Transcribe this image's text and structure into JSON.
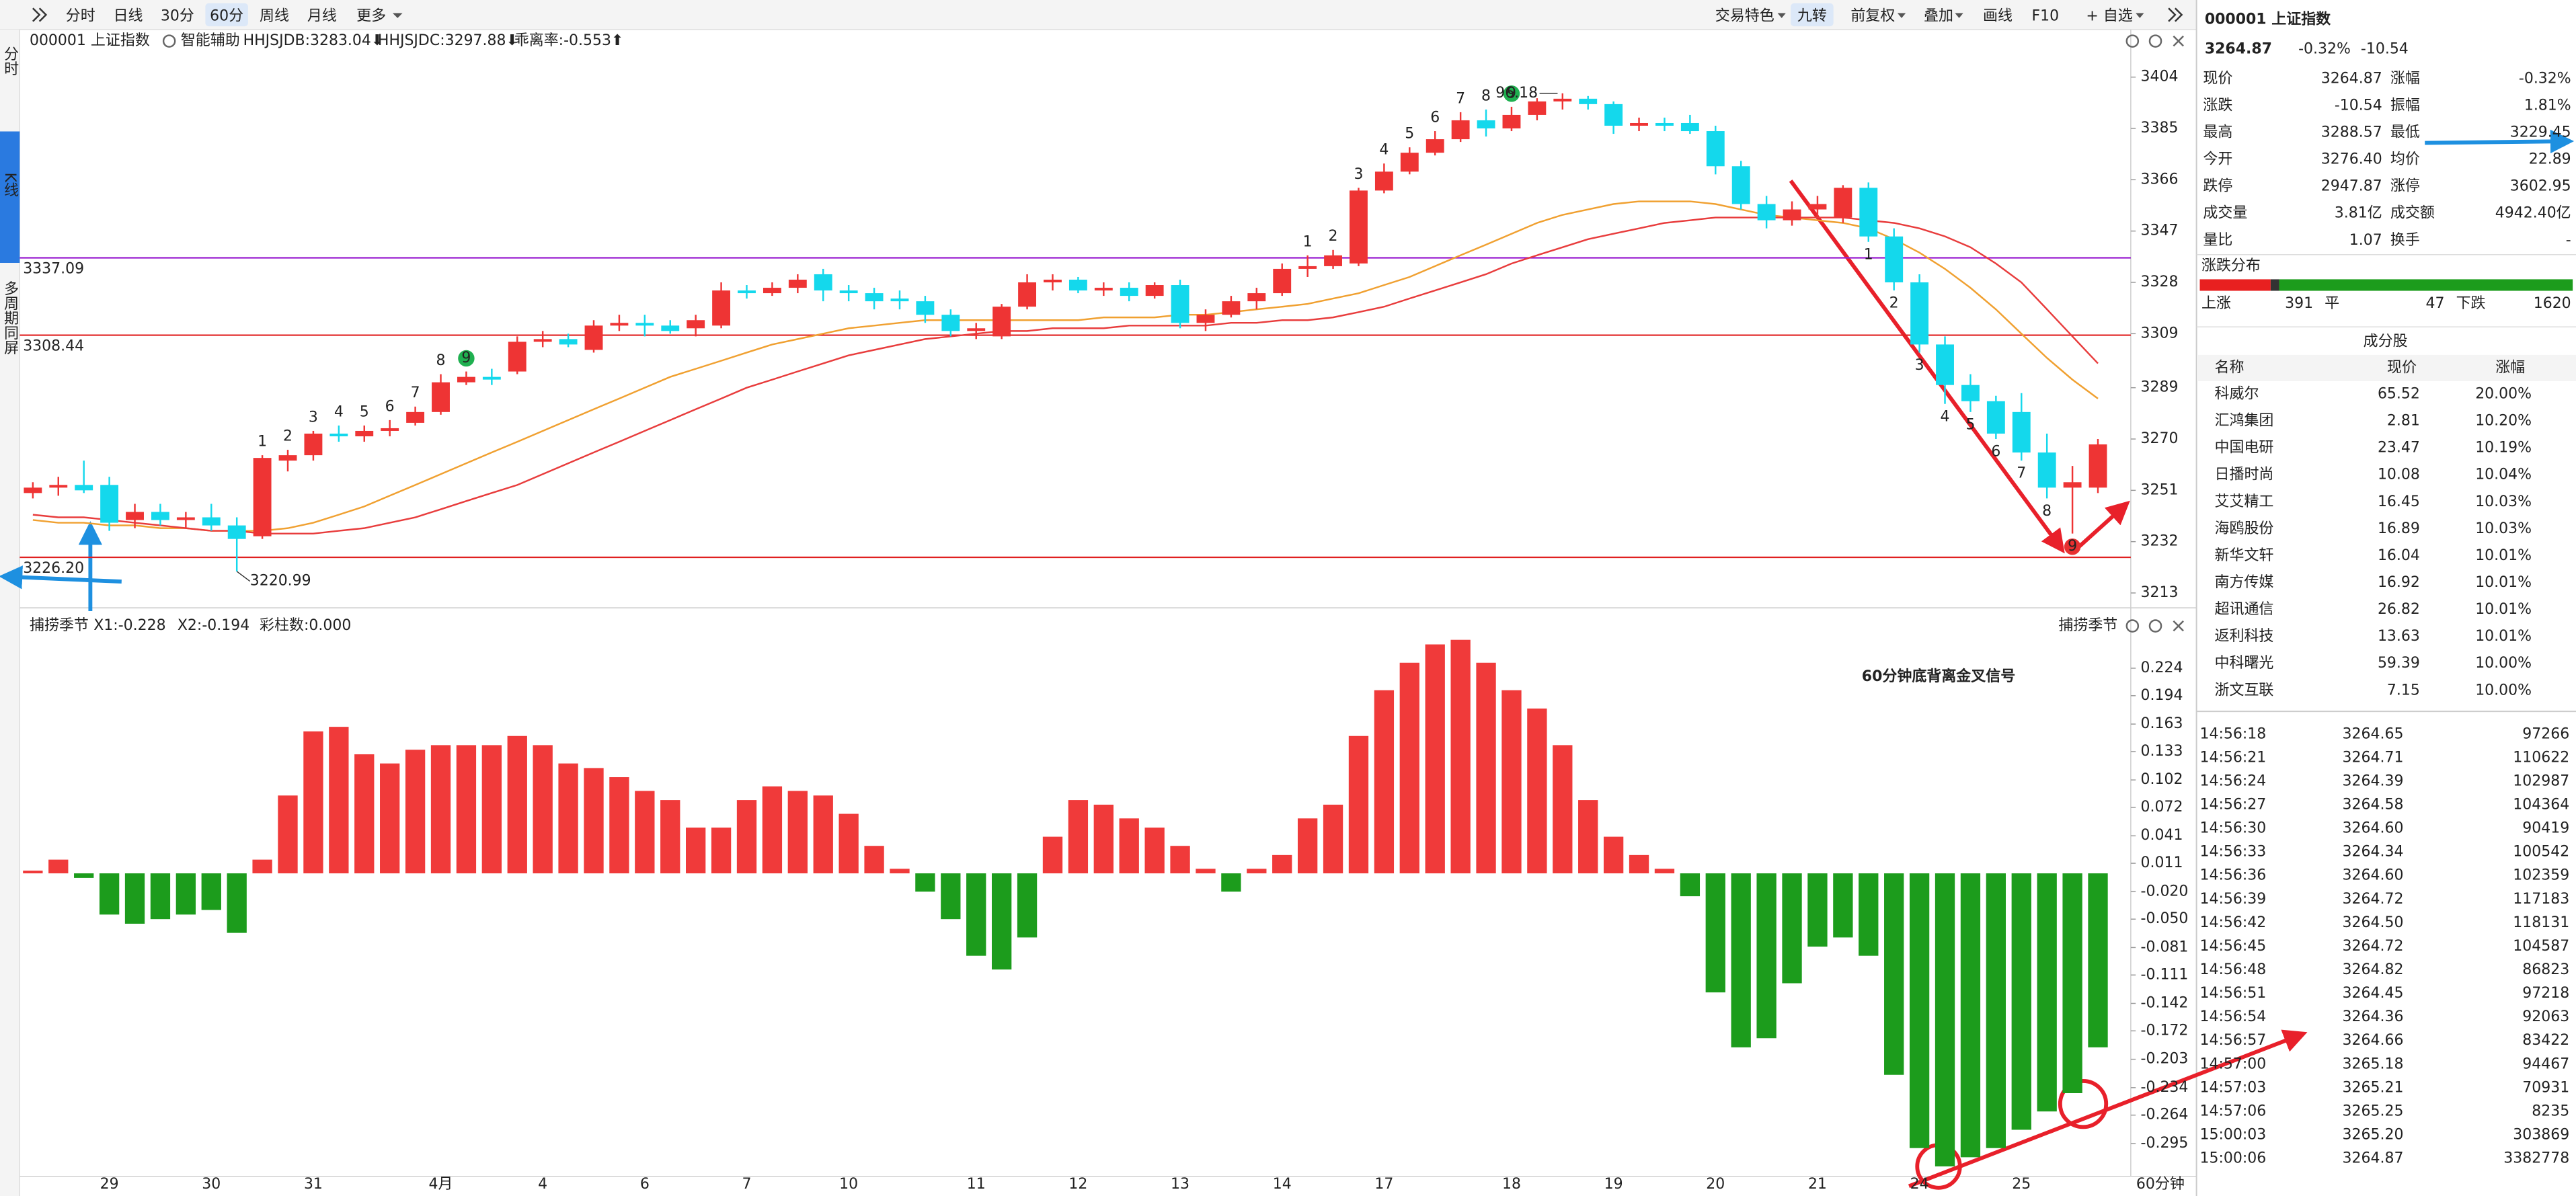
{
  "toolbar": {
    "left": [
      "分时",
      "日线",
      "30分",
      "60分",
      "周线",
      "月线",
      "更多"
    ],
    "active": 3,
    "right": [
      "交易特色",
      "九转",
      "前复权",
      "叠加",
      "画线",
      "F10",
      "+ 自选"
    ],
    "active_right": 1
  },
  "side_tabs": [
    "分时",
    "K线",
    "多周期同屏"
  ],
  "side_active": 1,
  "kline": {
    "type": "candlestick",
    "symbol": "000001 上证指数",
    "assist": "智能辅助",
    "legend": [
      "HHJSJDB:3283.04⬇",
      "HHJSJDC:3297.88⬇",
      "乖离率:-0.553⬆"
    ],
    "legend_colors": [
      "#e39a00",
      "#e02828",
      "#e39a00"
    ],
    "up_color": "#ee3434",
    "down_color": "#14d8ec",
    "ylim": [
      3208.7,
      3421.6
    ],
    "yticks": [
      3404,
      3385,
      3366,
      3347,
      3328,
      3309,
      3289,
      3270,
      3251,
      3232,
      3213
    ],
    "levels": [
      {
        "value": 3337.09,
        "color": "#9a1fd0"
      },
      {
        "value": 3308.44,
        "color": "#e02020"
      },
      {
        "value": 3226.2,
        "label": "3226.20",
        "color": "#e02020"
      }
    ],
    "high_label": "96.18",
    "low_label": "3220.99",
    "categories": [
      null,
      null,
      null,
      "29",
      null,
      null,
      null,
      "30",
      null,
      null,
      null,
      "31",
      null,
      null,
      null,
      null,
      "4月",
      null,
      null,
      null,
      "4",
      null,
      null,
      null,
      "6",
      null,
      null,
      null,
      "7",
      null,
      null,
      null,
      "10",
      null,
      null,
      null,
      null,
      "11",
      null,
      null,
      null,
      "12",
      null,
      null,
      null,
      "13",
      null,
      null,
      null,
      "14",
      null,
      null,
      null,
      "17",
      null,
      null,
      null,
      null,
      "18",
      null,
      null,
      null,
      "19",
      null,
      null,
      null,
      "20",
      null,
      null,
      null,
      "21",
      null,
      null,
      null,
      "24",
      null,
      null,
      null,
      "25",
      null,
      null,
      null
    ],
    "candles": [
      [
        3250,
        3254,
        3248,
        3252
      ],
      [
        3252,
        3256,
        3249,
        3253
      ],
      [
        3253,
        3262,
        3250,
        3251
      ],
      [
        3253,
        3256,
        3236,
        3239
      ],
      [
        3240,
        3246,
        3237,
        3243
      ],
      [
        3243,
        3246,
        3238,
        3240
      ],
      [
        3240,
        3243,
        3237,
        3241
      ],
      [
        3241,
        3246,
        3236,
        3238
      ],
      [
        3238,
        3241,
        3220.99,
        3233
      ],
      [
        3234,
        3264,
        3233,
        3263
      ],
      [
        3262,
        3266,
        3258,
        3264
      ],
      [
        3264,
        3273,
        3262,
        3272
      ],
      [
        3272,
        3275,
        3269,
        3271
      ],
      [
        3271,
        3275,
        3269,
        3273
      ],
      [
        3273,
        3277,
        3271,
        3274
      ],
      [
        3276,
        3282,
        3275,
        3280
      ],
      [
        3280,
        3294,
        3279,
        3291
      ],
      [
        3291,
        3295,
        3290,
        3293
      ],
      [
        3293,
        3296,
        3290,
        3292
      ],
      [
        3295,
        3308,
        3294,
        3306
      ],
      [
        3306,
        3310,
        3304,
        3307
      ],
      [
        3307,
        3309,
        3304,
        3305
      ],
      [
        3303,
        3314,
        3302,
        3312
      ],
      [
        3312,
        3316,
        3310,
        3313
      ],
      [
        3313,
        3316,
        3308,
        3312
      ],
      [
        3312,
        3314,
        3309,
        3310
      ],
      [
        3311,
        3316,
        3308,
        3314
      ],
      [
        3312,
        3328,
        3311,
        3325
      ],
      [
        3325,
        3327,
        3322,
        3324
      ],
      [
        3324,
        3328,
        3323,
        3326
      ],
      [
        3326,
        3331,
        3324,
        3329
      ],
      [
        3331,
        3333,
        3321,
        3325
      ],
      [
        3325,
        3327,
        3321,
        3324
      ],
      [
        3324,
        3326,
        3318,
        3321
      ],
      [
        3322,
        3325,
        3318,
        3321
      ],
      [
        3321,
        3323,
        3313,
        3316
      ],
      [
        3316,
        3318,
        3308,
        3310
      ],
      [
        3310,
        3313,
        3307,
        3311
      ],
      [
        3308,
        3320,
        3307,
        3319
      ],
      [
        3319,
        3331,
        3318,
        3328
      ],
      [
        3328,
        3331,
        3325,
        3329
      ],
      [
        3329,
        3330,
        3324,
        3325
      ],
      [
        3325,
        3328,
        3323,
        3326
      ],
      [
        3326,
        3328,
        3321,
        3323
      ],
      [
        3323,
        3328,
        3322,
        3327
      ],
      [
        3327,
        3329,
        3311,
        3313
      ],
      [
        3313,
        3318,
        3310,
        3316
      ],
      [
        3316,
        3323,
        3315,
        3321
      ],
      [
        3321,
        3326,
        3318,
        3324
      ],
      [
        3324,
        3335,
        3323,
        3333
      ],
      [
        3333,
        3338,
        3330,
        3334
      ],
      [
        3334,
        3340,
        3333,
        3338
      ],
      [
        3335,
        3363,
        3334,
        3362
      ],
      [
        3362,
        3372,
        3361,
        3369
      ],
      [
        3369,
        3378,
        3368,
        3376
      ],
      [
        3376,
        3384,
        3375,
        3381
      ],
      [
        3381,
        3391,
        3380,
        3388
      ],
      [
        3388,
        3392,
        3382,
        3385
      ],
      [
        3385,
        3393,
        3384,
        3390
      ],
      [
        3390,
        3396.18,
        3388,
        3395
      ],
      [
        3395,
        3398,
        3392,
        3396
      ],
      [
        3396,
        3397,
        3392,
        3394
      ],
      [
        3394,
        3395,
        3383,
        3386
      ],
      [
        3386,
        3389,
        3384,
        3387
      ],
      [
        3387,
        3389,
        3384,
        3386
      ],
      [
        3387,
        3390,
        3383,
        3384
      ],
      [
        3384,
        3386,
        3368,
        3371
      ],
      [
        3371,
        3373,
        3355,
        3357
      ],
      [
        3357,
        3360,
        3348,
        3351
      ],
      [
        3351,
        3358,
        3349,
        3355
      ],
      [
        3355,
        3360,
        3352,
        3357
      ],
      [
        3352,
        3364,
        3350,
        3363
      ],
      [
        3363,
        3365,
        3343,
        3345
      ],
      [
        3345,
        3348,
        3325,
        3328
      ],
      [
        3328,
        3331,
        3302,
        3305
      ],
      [
        3305,
        3308,
        3283,
        3290
      ],
      [
        3290,
        3294,
        3280,
        3284
      ],
      [
        3284,
        3286,
        3270,
        3272
      ],
      [
        3280,
        3287,
        3262,
        3265
      ],
      [
        3265,
        3272,
        3248,
        3252
      ],
      [
        3252,
        3260,
        3235,
        3254
      ],
      [
        3252,
        3270,
        3250,
        3268
      ]
    ],
    "series": [
      {
        "color": "#f0a030",
        "values": [
          3240,
          3239,
          3239,
          3238,
          3238,
          3237,
          3237,
          3236,
          3236,
          3236,
          3237,
          3239,
          3242,
          3245,
          3249,
          3253,
          3257,
          3261,
          3265,
          3269,
          3273,
          3277,
          3281,
          3285,
          3289,
          3293,
          3296,
          3299,
          3302,
          3305,
          3307,
          3309,
          3311,
          3312,
          3313,
          3314,
          3314,
          3314,
          3314,
          3314,
          3314,
          3314,
          3315,
          3315,
          3315,
          3316,
          3316,
          3317,
          3318,
          3319,
          3320,
          3322,
          3324,
          3327,
          3330,
          3334,
          3338,
          3342,
          3346,
          3350,
          3353,
          3355,
          3357,
          3358,
          3358,
          3358,
          3357,
          3355,
          3353,
          3352,
          3351,
          3350,
          3348,
          3344,
          3339,
          3333,
          3326,
          3318,
          3309,
          3300,
          3292,
          3285
        ]
      },
      {
        "color": "#e83c3c",
        "values": [
          3242,
          3241,
          3241,
          3240,
          3239,
          3238,
          3237,
          3236,
          3236,
          3235,
          3235,
          3235,
          3236,
          3237,
          3239,
          3241,
          3244,
          3247,
          3250,
          3253,
          3257,
          3261,
          3265,
          3269,
          3273,
          3277,
          3281,
          3285,
          3289,
          3292,
          3295,
          3298,
          3301,
          3303,
          3305,
          3307,
          3308,
          3309,
          3310,
          3310,
          3311,
          3311,
          3311,
          3312,
          3312,
          3312,
          3312,
          3313,
          3313,
          3314,
          3314,
          3315,
          3317,
          3319,
          3322,
          3325,
          3328,
          3331,
          3335,
          3338,
          3341,
          3344,
          3346,
          3348,
          3350,
          3351,
          3352,
          3352,
          3352,
          3352,
          3352,
          3352,
          3351,
          3350,
          3348,
          3345,
          3341,
          3335,
          3328,
          3318,
          3308,
          3298
        ]
      }
    ],
    "seq_up": [
      null,
      null,
      null,
      null,
      null,
      null,
      null,
      null,
      null,
      "1",
      "2",
      "3",
      "4",
      "5",
      "6",
      "7",
      "8",
      "9",
      null,
      null,
      null,
      null,
      null,
      null,
      null,
      null,
      null,
      null,
      null,
      null,
      null,
      null,
      null,
      null,
      null,
      null,
      null,
      null,
      null,
      null,
      null,
      null,
      null,
      null,
      null,
      null,
      null,
      null,
      null,
      null,
      "1",
      "2",
      "3",
      "4",
      "5",
      "6",
      "7",
      "8",
      "9",
      null,
      null,
      null,
      null,
      null,
      null,
      null,
      null,
      null,
      null,
      null,
      null,
      null,
      null,
      null,
      null,
      null,
      null,
      null,
      null,
      null,
      null,
      null
    ],
    "seq_down": [
      null,
      null,
      null,
      null,
      null,
      null,
      null,
      null,
      null,
      null,
      null,
      null,
      null,
      null,
      null,
      null,
      null,
      null,
      null,
      null,
      null,
      null,
      null,
      null,
      null,
      null,
      null,
      null,
      null,
      null,
      null,
      null,
      null,
      null,
      null,
      null,
      null,
      null,
      null,
      null,
      null,
      null,
      null,
      null,
      null,
      null,
      null,
      null,
      null,
      null,
      null,
      null,
      null,
      null,
      null,
      null,
      null,
      null,
      null,
      null,
      null,
      null,
      null,
      null,
      null,
      null,
      null,
      null,
      null,
      null,
      null,
      null,
      "1",
      "2",
      "3",
      "4",
      "5",
      "6",
      "7",
      "8",
      "9",
      null
    ],
    "period_label": "60分钟"
  },
  "indicator": {
    "type": "bar",
    "title": "捕捞季节",
    "title_right": "捕捞季节",
    "legend": [
      "X1:-0.228",
      "X2:-0.194",
      "彩柱数:0.000"
    ],
    "legend_colors": [
      "#e39a00",
      "#d81ed8",
      "#169a16"
    ],
    "overlay_text": "60分钟底背离金叉信号",
    "up_color": "#f03a3a",
    "down_color": "#1c9c1c",
    "ylim": [
      -0.329,
      0.263
    ],
    "yticks": [
      0.224,
      0.194,
      0.163,
      0.133,
      0.102,
      0.072,
      0.041,
      0.011,
      {
        "value": -0.02,
        "label": "-0.020"
      },
      {
        "value": -0.05,
        "label": "-0.050"
      },
      -0.081,
      -0.111,
      -0.142,
      -0.172,
      -0.203,
      -0.234,
      -0.264,
      -0.295
    ],
    "values": [
      0.003,
      0.015,
      -0.005,
      -0.045,
      -0.055,
      -0.05,
      -0.045,
      -0.04,
      -0.065,
      0.015,
      0.085,
      0.155,
      0.16,
      0.13,
      0.12,
      0.135,
      0.14,
      0.14,
      0.14,
      0.15,
      0.14,
      0.12,
      0.115,
      0.105,
      0.09,
      0.08,
      0.05,
      0.05,
      0.08,
      0.095,
      0.09,
      0.085,
      0.065,
      0.03,
      0.005,
      -0.02,
      -0.05,
      -0.09,
      -0.105,
      -0.07,
      0.04,
      0.08,
      0.075,
      0.06,
      0.05,
      0.03,
      0.005,
      -0.02,
      0.005,
      0.02,
      0.06,
      0.075,
      0.15,
      0.2,
      0.23,
      0.25,
      0.255,
      0.23,
      0.2,
      0.18,
      0.14,
      0.08,
      0.04,
      0.02,
      0.005,
      -0.025,
      -0.13,
      -0.19,
      -0.18,
      -0.12,
      -0.08,
      -0.07,
      -0.09,
      -0.22,
      -0.3,
      -0.32,
      -0.31,
      -0.3,
      -0.28,
      -0.26,
      -0.24,
      -0.19
    ]
  },
  "quote": {
    "name": "000001 上证指数",
    "price": "3264.87",
    "change_pct": "-0.32%",
    "change": "-10.54",
    "rows": [
      [
        "现价",
        "3264.87",
        "涨幅",
        "-0.32%"
      ],
      [
        "涨跌",
        "-10.54",
        "振幅",
        "1.81%"
      ],
      [
        "最高",
        "3288.57",
        "最低",
        "3229.45"
      ],
      [
        "今开",
        "3276.40",
        "均价",
        "22.89"
      ],
      [
        "跌停",
        "2947.87",
        "涨停",
        "3602.95"
      ],
      [
        "成交量",
        "3.81亿",
        "成交额",
        "4942.40亿"
      ],
      [
        "量比",
        "1.07",
        "换手",
        "-"
      ]
    ],
    "colors": [
      [
        "#0a9a0a",
        "#0a9a0a"
      ],
      [
        "#0a9a0a",
        "#222222"
      ],
      [
        "#e0201e",
        "#0a9a0a"
      ],
      [
        "#e0201e",
        "#0a9a0a"
      ],
      [
        "#0a9a0a",
        "#e0201e"
      ],
      [
        "#222222",
        "#222222"
      ],
      [
        "#222222",
        "#222222"
      ]
    ]
  },
  "breadth": {
    "title": "涨跌分布",
    "up_label": "上涨",
    "up": 391,
    "flat_label": "平",
    "flat": 47,
    "down_label": "下跌",
    "down": 1620
  },
  "constituents": {
    "title": "成分股",
    "header": [
      "名称",
      "现价",
      "涨幅"
    ],
    "rows": [
      [
        "科威尔",
        "65.52",
        "20.00%"
      ],
      [
        "汇鸿集团",
        "2.81",
        "10.20%"
      ],
      [
        "中国电研",
        "23.47",
        "10.19%"
      ],
      [
        "日播时尚",
        "10.08",
        "10.04%"
      ],
      [
        "艾艾精工",
        "16.45",
        "10.03%"
      ],
      [
        "海鸥股份",
        "16.89",
        "10.03%"
      ],
      [
        "新华文轩",
        "16.04",
        "10.01%"
      ],
      [
        "南方传媒",
        "16.92",
        "10.01%"
      ],
      [
        "超讯通信",
        "26.82",
        "10.01%"
      ],
      [
        "返利科技",
        "13.63",
        "10.01%"
      ],
      [
        "中科曙光",
        "59.39",
        "10.00%"
      ],
      [
        "浙文互联",
        "7.15",
        "10.00%"
      ]
    ],
    "name_colors": [
      "#2266cc",
      "#222222",
      "#2266cc",
      "#222222",
      "#222222",
      "#222222",
      "#2266cc",
      "#2266cc",
      "#2266cc",
      "#222222",
      "#2266cc",
      "#2266cc"
    ]
  },
  "ticks": {
    "rows": [
      [
        "14:56:18",
        "3264.65",
        "97266"
      ],
      [
        "14:56:21",
        "3264.71",
        "110622"
      ],
      [
        "14:56:24",
        "3264.39",
        "102987"
      ],
      [
        "14:56:27",
        "3264.58",
        "104364"
      ],
      [
        "14:56:30",
        "3264.60",
        "90419"
      ],
      [
        "14:56:33",
        "3264.34",
        "100542"
      ],
      [
        "14:56:36",
        "3264.60",
        "102359"
      ],
      [
        "14:56:39",
        "3264.72",
        "117183"
      ],
      [
        "14:56:42",
        "3264.50",
        "118131"
      ],
      [
        "14:56:45",
        "3264.72",
        "104587"
      ],
      [
        "14:56:48",
        "3264.82",
        "86823"
      ],
      [
        "14:56:51",
        "3264.45",
        "97218"
      ],
      [
        "14:56:54",
        "3264.36",
        "92063"
      ],
      [
        "14:56:57",
        "3264.66",
        "83422"
      ],
      [
        "14:57:00",
        "3265.18",
        "94467"
      ],
      [
        "14:57:03",
        "3265.21",
        "70931"
      ],
      [
        "14:57:06",
        "3265.25",
        "8235"
      ],
      [
        "15:00:03",
        "3265.20",
        "303869"
      ],
      [
        "15:00:06",
        "3264.87",
        "3382778"
      ]
    ],
    "price_color": "#0a9a0a"
  }
}
